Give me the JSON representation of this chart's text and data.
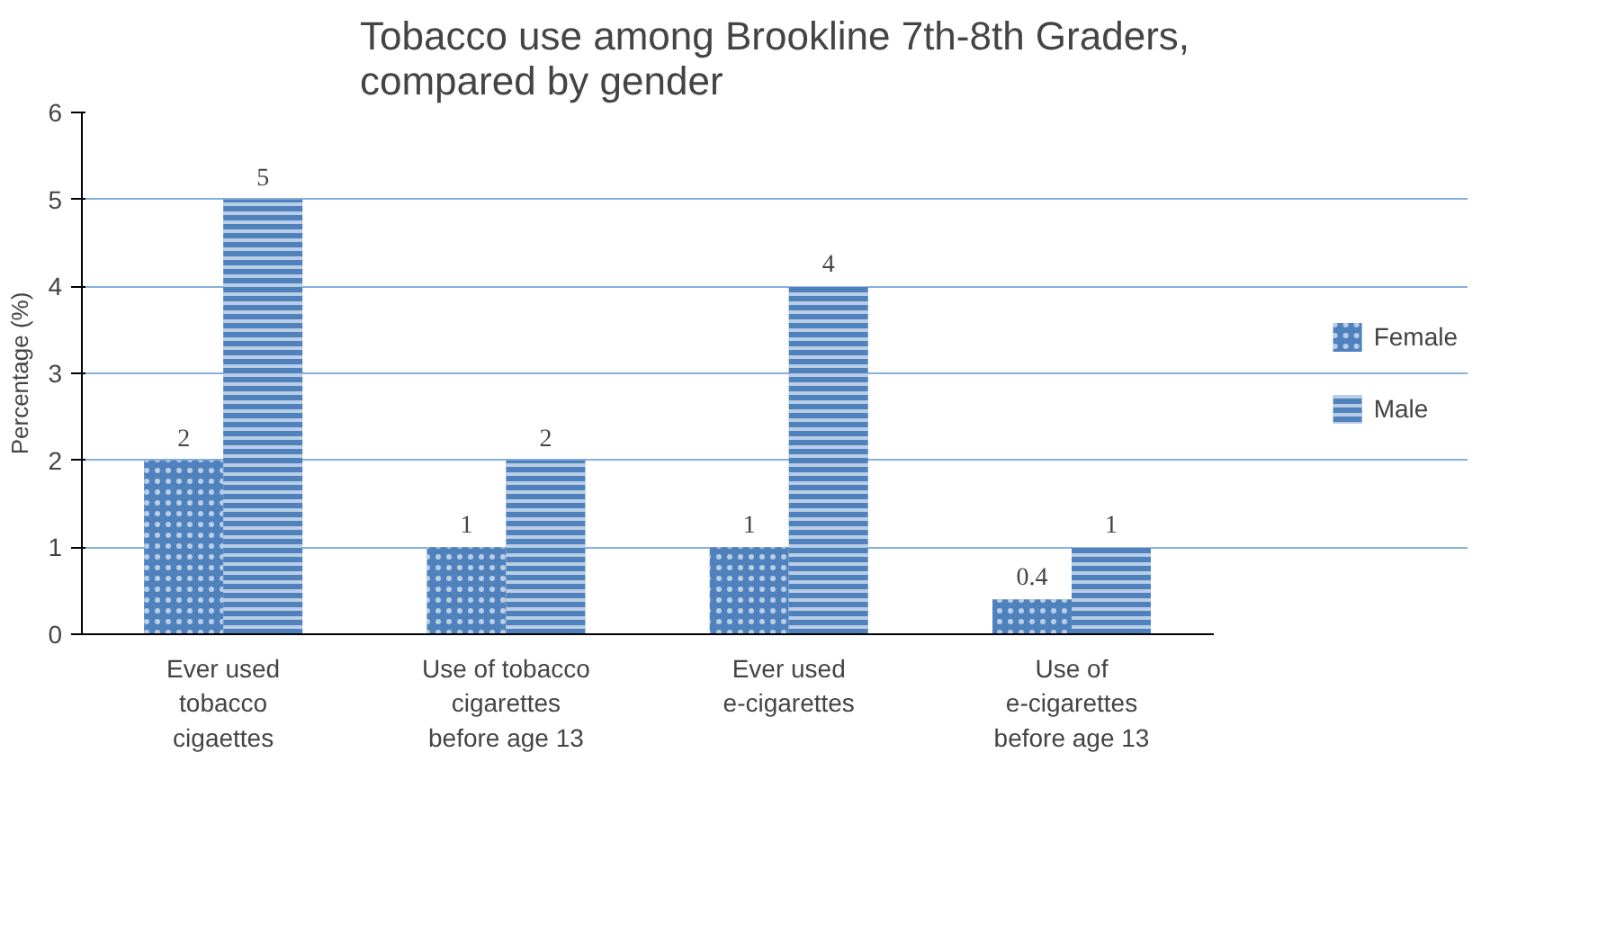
{
  "chart_data": {
    "type": "bar",
    "title": "Tobacco use among Brookline 7th-8th Graders, compared by gender",
    "ylabel": "Percentage (%)",
    "categories": [
      "Ever used tobacco cigaettes",
      "Use of tobacco cigarettes before age 13",
      "Ever used e-cigarettes",
      "Use of e-cigarettes before age 13"
    ],
    "series": [
      {
        "name": "Female",
        "color": "#4f81bd",
        "values": [
          2,
          1,
          1,
          0.4
        ]
      },
      {
        "name": "Male",
        "color": "#4f81bd",
        "values": [
          5,
          2,
          4,
          1
        ]
      }
    ],
    "ylim": [
      0,
      6
    ],
    "yticks": [
      0,
      1,
      2,
      3,
      4,
      5,
      6
    ],
    "grid": "y",
    "legend": "right",
    "data_labels": true
  }
}
